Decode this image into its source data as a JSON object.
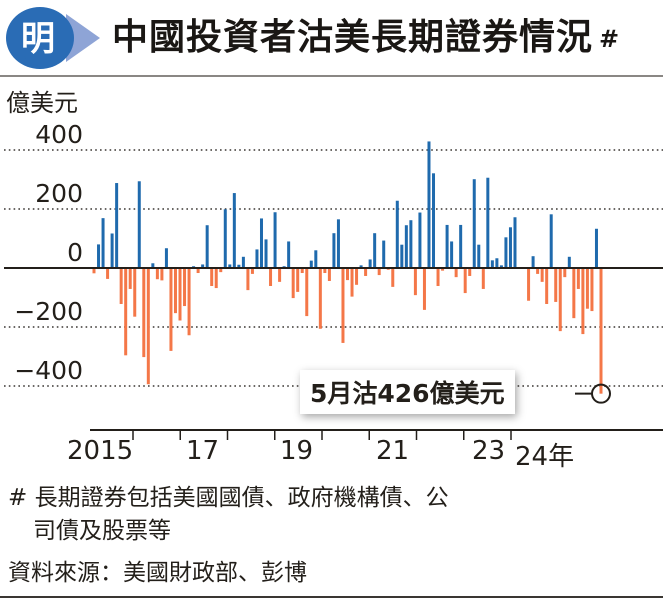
{
  "header": {
    "logo_text": "明",
    "title": "中國投資者沽美長期證券情況",
    "title_mark": "#"
  },
  "chart_data": {
    "type": "bar",
    "title": "中國投資者沽美長期證券情況",
    "ylabel": "億美元",
    "ylim": [
      -460,
      460
    ],
    "yticks": [
      400,
      200,
      0,
      -200,
      -400
    ],
    "ytick_labels": [
      "400",
      "200",
      "0",
      "−200",
      "−400"
    ],
    "grid": true,
    "period": "monthly, Jan 2015 – May 2024",
    "xtick_labels": [
      "2015",
      "17",
      "19",
      "21",
      "23",
      "24年"
    ],
    "positive_color": "#1f6aad",
    "negative_color": "#f47748",
    "values": [
      -18,
      80,
      169,
      -37,
      117,
      288,
      -122,
      -296,
      -71,
      -165,
      294,
      -302,
      -394,
      16,
      -38,
      -42,
      67,
      -281,
      -153,
      -178,
      -129,
      -228,
      6,
      -17,
      12,
      145,
      -61,
      -68,
      -14,
      199,
      12,
      254,
      11,
      38,
      -75,
      -20,
      63,
      168,
      97,
      -61,
      189,
      -47,
      6,
      90,
      -102,
      -81,
      -17,
      -163,
      25,
      60,
      -206,
      -17,
      -44,
      118,
      165,
      -254,
      -41,
      -97,
      -57,
      9,
      -27,
      29,
      118,
      -24,
      93,
      -6,
      -64,
      228,
      79,
      145,
      162,
      -92,
      188,
      -142,
      429,
      321,
      -61,
      -9,
      146,
      90,
      -31,
      146,
      -85,
      -27,
      301,
      79,
      -71,
      306,
      26,
      33,
      9,
      104,
      138,
      172,
      0,
      0,
      -111,
      40,
      -20,
      -47,
      -122,
      182,
      -115,
      -214,
      -31,
      38,
      -170,
      -71,
      -224,
      -138,
      -146,
      133,
      -426
    ],
    "annotation": "5月沽426億美元"
  },
  "footnotes": {
    "line1": "# 長期證券包括美國國債、政府機構債、公",
    "line2": "司債及股票等",
    "source": "資料來源：美國財政部、彭博"
  }
}
